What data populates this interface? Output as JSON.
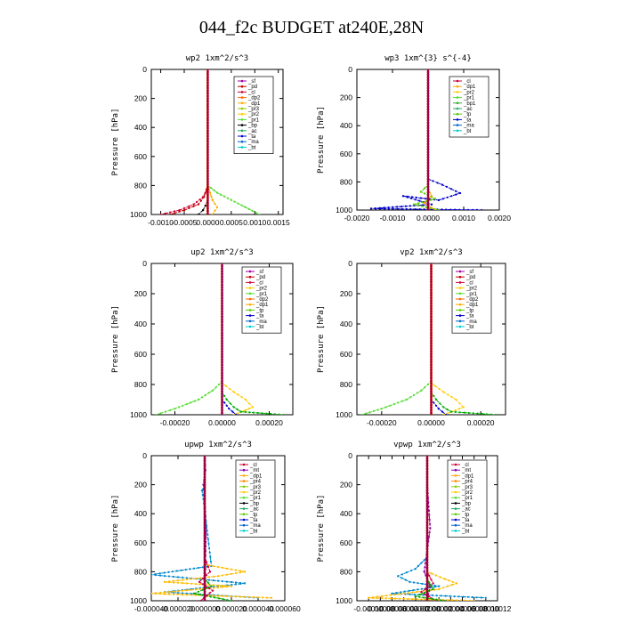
{
  "title": "044_f2c  BUDGET at240E,28N",
  "chart_data": [
    {
      "id": "wp2",
      "type": "line",
      "title": "wp2   1xm^2/s^3",
      "ylabel": "Pressure [hPa]",
      "ylim": [
        1000,
        0
      ],
      "xlim": [
        -0.0012,
        0.0016
      ],
      "xticks": [
        -0.001,
        -0.0005,
        0.0,
        0.0005,
        0.001,
        0.0015
      ],
      "xtick_labels": [
        "-0.0010",
        "-0.0005",
        "0.0000",
        "0.0005",
        "0.0010",
        "0.0015"
      ],
      "yticks": [
        0,
        200,
        400,
        600,
        800,
        1000
      ],
      "legend": [
        "_sf",
        "_pd",
        "_cl",
        "_dp2",
        "_dp1",
        "_pr3",
        "_pr2",
        "_pr1",
        "_bp",
        "_ac",
        "_ta",
        "_ma",
        "_bt"
      ],
      "series": [
        {
          "name": "_sf",
          "color": "#a000a0",
          "x": [
            0,
            0,
            0,
            0
          ],
          "y": [
            0,
            300,
            700,
            1000
          ]
        },
        {
          "name": "_pd",
          "color": "#c00000",
          "x": [
            0,
            0,
            -8e-05,
            -0.0002,
            -0.0005,
            -0.0008
          ],
          "y": [
            0,
            800,
            880,
            930,
            970,
            1000
          ]
        },
        {
          "name": "_pr1",
          "color": "#55dd33",
          "x": [
            0,
            0,
            0.0002,
            0.0005,
            0.0008,
            0.0011
          ],
          "y": [
            0,
            800,
            850,
            900,
            950,
            1000
          ]
        },
        {
          "name": "_dp1",
          "color": "#ffaa00",
          "x": [
            0,
            0,
            5e-05,
            0.0001,
            0.0002,
            0.0001
          ],
          "y": [
            0,
            800,
            850,
            900,
            950,
            1000
          ]
        },
        {
          "name": "_cl",
          "color": "#cc0033",
          "x": [
            0,
            0,
            -0.0001,
            -0.0003,
            -0.0006,
            -0.001
          ],
          "y": [
            0,
            820,
            880,
            930,
            970,
            1000
          ]
        },
        {
          "name": "_bp",
          "color": "#000000",
          "x": [
            0,
            0,
            -5e-05,
            -0.0001,
            -0.0002
          ],
          "y": [
            0,
            900,
            940,
            970,
            1000
          ]
        },
        {
          "name": "_bt",
          "color": "#00cccc",
          "x": [
            0,
            0,
            0
          ],
          "y": [
            0,
            500,
            1000
          ]
        }
      ]
    },
    {
      "id": "wp3",
      "type": "line",
      "title": "wp3   1xm^{3} s^{-4}",
      "ylabel": "Pressure [hPa]",
      "ylim": [
        1000,
        0
      ],
      "xlim": [
        -0.002,
        0.002
      ],
      "xticks": [
        -0.002,
        -0.001,
        0.0,
        0.001,
        0.002
      ],
      "xtick_labels": [
        "-0.0020",
        "-0.0010",
        "0.0000",
        "0.0010",
        "0.0020"
      ],
      "yticks": [
        0,
        200,
        400,
        600,
        800,
        1000
      ],
      "legend": [
        "_cl",
        "_dp1",
        "_pr2",
        "_pr1",
        "_bp1",
        "_ac",
        "_tp",
        "_ta",
        "_ma",
        "_bt"
      ],
      "series": [
        {
          "name": "_ta",
          "color": "#0000cc",
          "x": [
            0,
            0,
            0.0004,
            0.0009,
            0.0003,
            -0.0007,
            0.0001,
            -0.0016,
            0.0015
          ],
          "y": [
            0,
            780,
            820,
            880,
            930,
            900,
            960,
            990,
            1000
          ]
        },
        {
          "name": "_tp",
          "color": "#55cc00",
          "x": [
            0,
            0,
            -0.0002,
            0.0002,
            -0.0004,
            0.0003
          ],
          "y": [
            0,
            820,
            870,
            920,
            960,
            1000
          ]
        },
        {
          "name": "_pr2",
          "color": "#ffaa00",
          "x": [
            0,
            0,
            0.0001,
            -0.0001,
            0.0002
          ],
          "y": [
            0,
            850,
            900,
            950,
            1000
          ]
        },
        {
          "name": "_cl",
          "color": "#cc0000",
          "x": [
            0,
            0,
            0
          ],
          "y": [
            0,
            500,
            1000
          ]
        },
        {
          "name": "_bt",
          "color": "#00cccc",
          "x": [
            0,
            0,
            0
          ],
          "y": [
            0,
            500,
            1000
          ]
        }
      ]
    },
    {
      "id": "up2",
      "type": "line",
      "title": "up2   1xm^2/s^3",
      "ylabel": "Pressure [hPa]",
      "ylim": [
        1000,
        0
      ],
      "xlim": [
        -0.0003,
        0.0003
      ],
      "xticks": [
        -0.0002,
        0.0,
        0.0002
      ],
      "xtick_labels": [
        "-0.00020",
        "0.00000",
        "0.00020"
      ],
      "yticks": [
        0,
        200,
        400,
        600,
        800,
        1000
      ],
      "legend": [
        "_sf",
        "_pd",
        "_cl",
        "_pr2",
        "_pr1",
        "_dp2",
        "_dp1",
        "_tp",
        "_ta",
        "_ma",
        "_bt"
      ],
      "series": [
        {
          "name": "_dp2",
          "color": "#55dd33",
          "x": [
            0,
            0,
            -4e-05,
            -0.0001,
            -0.0002,
            -0.00028
          ],
          "y": [
            0,
            780,
            840,
            900,
            960,
            1000
          ]
        },
        {
          "name": "_pr2",
          "color": "#ffcc00",
          "x": [
            0,
            0,
            5e-05,
            0.0001,
            0.00013,
            5e-05
          ],
          "y": [
            0,
            790,
            850,
            900,
            950,
            1000
          ]
        },
        {
          "name": "_pr1",
          "color": "#00aa00",
          "x": [
            0,
            0,
            2e-05,
            5e-05,
            8e-05,
            0.00026
          ],
          "y": [
            0,
            850,
            900,
            950,
            980,
            1000
          ]
        },
        {
          "name": "_ta",
          "color": "#0000cc",
          "x": [
            0,
            0,
            3e-05,
            6e-05
          ],
          "y": [
            0,
            900,
            960,
            1000
          ]
        },
        {
          "name": "_cl",
          "color": "#cc0000",
          "x": [
            0,
            0,
            0
          ],
          "y": [
            0,
            500,
            1000
          ]
        },
        {
          "name": "_bt",
          "color": "#00cccc",
          "x": [
            0,
            0,
            0
          ],
          "y": [
            0,
            500,
            1000
          ]
        }
      ]
    },
    {
      "id": "vp2",
      "type": "line",
      "title": "vp2   1xm^2/s^3",
      "ylabel": "Pressure [hPa]",
      "ylim": [
        1000,
        0
      ],
      "xlim": [
        -0.0003,
        0.0003
      ],
      "xticks": [
        -0.0002,
        0.0,
        0.0002
      ],
      "xtick_labels": [
        "-0.00020",
        "0.00000",
        "0.00020"
      ],
      "yticks": [
        0,
        200,
        400,
        600,
        800,
        1000
      ],
      "legend": [
        "_sf",
        "_pd",
        "_cl",
        "_pr2",
        "_pr1",
        "_dp2",
        "_dp1",
        "_tp",
        "_ta",
        "_ma",
        "_bt"
      ],
      "series": [
        {
          "name": "_dp2",
          "color": "#55dd33",
          "x": [
            0,
            0,
            -4e-05,
            -0.0001,
            -0.0002,
            -0.00028
          ],
          "y": [
            0,
            780,
            840,
            900,
            960,
            1000
          ]
        },
        {
          "name": "_pr2",
          "color": "#ffcc00",
          "x": [
            0,
            0,
            5e-05,
            0.0001,
            0.00013,
            5e-05
          ],
          "y": [
            0,
            790,
            850,
            900,
            950,
            1000
          ]
        },
        {
          "name": "_pr1",
          "color": "#00aa00",
          "x": [
            0,
            0,
            2e-05,
            5e-05,
            8e-05,
            0.00026
          ],
          "y": [
            0,
            850,
            900,
            950,
            980,
            1000
          ]
        },
        {
          "name": "_ta",
          "color": "#0000cc",
          "x": [
            0,
            0,
            3e-05,
            6e-05
          ],
          "y": [
            0,
            900,
            960,
            1000
          ]
        },
        {
          "name": "_cl",
          "color": "#cc0000",
          "x": [
            0,
            0,
            0
          ],
          "y": [
            0,
            500,
            1000
          ]
        },
        {
          "name": "_bt",
          "color": "#00cccc",
          "x": [
            0,
            0,
            0
          ],
          "y": [
            0,
            500,
            1000
          ]
        }
      ]
    },
    {
      "id": "upwp",
      "type": "line",
      "title": "upwp   1xm^2/s^3",
      "ylabel": "Pressure [hPa]",
      "ylim": [
        1000,
        0
      ],
      "xlim": [
        -4e-05,
        6e-05
      ],
      "xticks": [
        -4e-05,
        -2e-05,
        0.0,
        2e-05,
        4e-05,
        6e-05
      ],
      "xtick_labels": [
        "-0.000040",
        "-0.000020",
        "0.000000",
        "0.000020",
        "0.000040",
        "0.000060"
      ],
      "yticks": [
        0,
        200,
        400,
        600,
        800,
        1000
      ],
      "legend": [
        "_cl",
        "_mt",
        "_dp1",
        "_pr4",
        "_pr3",
        "_pr2",
        "_pr1",
        "_bp",
        "_ac",
        "_tp",
        "_ta",
        "_ma",
        "_bt"
      ],
      "series": [
        {
          "name": "_mt",
          "color": "#8800aa",
          "x": [
            0,
            5e-07,
            -1e-06,
            0,
            1e-06,
            0
          ],
          "y": [
            0,
            100,
            200,
            300,
            500,
            1000
          ]
        },
        {
          "name": "_ta",
          "color": "#0088cc",
          "x": [
            0,
            0,
            -2e-06,
            -1e-06,
            5e-06,
            -4e-05,
            3e-05,
            -3e-05,
            4e-05
          ],
          "y": [
            0,
            200,
            240,
            300,
            760,
            820,
            880,
            940,
            980
          ]
        },
        {
          "name": "_pr2",
          "color": "#ffbb00",
          "x": [
            0,
            0,
            3e-05,
            1e-05,
            -3e-05,
            2e-05,
            -4e-05,
            5e-05
          ],
          "y": [
            0,
            750,
            800,
            830,
            870,
            900,
            950,
            980
          ]
        },
        {
          "name": "_pr1",
          "color": "#00aa00",
          "x": [
            0,
            0,
            5e-06,
            -8e-06,
            2e-05
          ],
          "y": [
            0,
            850,
            900,
            950,
            1000
          ]
        },
        {
          "name": "_dp1",
          "color": "#cc0044",
          "x": [
            0,
            0,
            4e-06,
            -4e-06,
            6e-06,
            -3e-06
          ],
          "y": [
            0,
            700,
            800,
            870,
            930,
            1000
          ]
        },
        {
          "name": "_cl",
          "color": "#ff3333",
          "x": [
            0,
            0,
            0
          ],
          "y": [
            0,
            500,
            1000
          ]
        },
        {
          "name": "_bt",
          "color": "#00cccc",
          "x": [
            0,
            0,
            0
          ],
          "y": [
            0,
            500,
            1000
          ]
        }
      ]
    },
    {
      "id": "vpwp",
      "type": "line",
      "title": "vpwp   1xm^2/s^3",
      "ylabel": "Pressure [hPa]",
      "ylim": [
        1000,
        0
      ],
      "xlim": [
        -0.00012,
        0.00012
      ],
      "xticks": [
        -0.0001,
        -8e-05,
        -6e-05,
        -4e-05,
        -2e-05,
        0.0,
        2e-05,
        4e-05,
        6e-05,
        8e-05,
        0.0001,
        0.00012
      ],
      "xtick_labels": [
        "-0.00010",
        "-0.00008",
        "-0.00006",
        "-0.00004",
        "-0.00002",
        "0.00000",
        "0.00002",
        "0.00004",
        "0.00006",
        "0.00008",
        "0.00010",
        "0.00012"
      ],
      "yticks": [
        0,
        200,
        400,
        600,
        800,
        1000
      ],
      "legend": [
        "_cl",
        "_mt",
        "_dp1",
        "_pr4",
        "_pr3",
        "_pr2",
        "_pr1",
        "_bp",
        "_ac",
        "_tp",
        "_ta",
        "_ma",
        "_bt"
      ],
      "series": [
        {
          "name": "_ta",
          "color": "#0088cc",
          "x": [
            0,
            0,
            -2e-05,
            -5e-05,
            -3e-05,
            2e-05,
            -6e-05,
            0.0001
          ],
          "y": [
            0,
            700,
            780,
            830,
            870,
            900,
            950,
            980
          ]
        },
        {
          "name": "_pr2",
          "color": "#ffbb00",
          "x": [
            0,
            0,
            3e-05,
            5e-05,
            2e-05,
            -4e-05,
            -0.0001,
            8e-05
          ],
          "y": [
            0,
            800,
            850,
            880,
            920,
            950,
            980,
            1000
          ]
        },
        {
          "name": "_mt",
          "color": "#8800aa",
          "x": [
            0,
            0,
            5e-06,
            -5e-06,
            5e-06,
            0
          ],
          "y": [
            0,
            200,
            500,
            800,
            900,
            1000
          ]
        },
        {
          "name": "_dp1",
          "color": "#cc0044",
          "x": [
            0,
            0,
            1e-05,
            -1e-05,
            1.5e-05
          ],
          "y": [
            0,
            800,
            880,
            940,
            1000
          ]
        },
        {
          "name": "_pr1",
          "color": "#00aa00",
          "x": [
            0,
            0,
            1e-05,
            -2e-05,
            3e-05
          ],
          "y": [
            0,
            850,
            920,
            970,
            1000
          ]
        },
        {
          "name": "_cl",
          "color": "#ff3333",
          "x": [
            0,
            0,
            0
          ],
          "y": [
            0,
            500,
            1000
          ]
        },
        {
          "name": "_bt",
          "color": "#00cccc",
          "x": [
            0,
            0,
            0
          ],
          "y": [
            0,
            500,
            1000
          ]
        }
      ]
    }
  ]
}
